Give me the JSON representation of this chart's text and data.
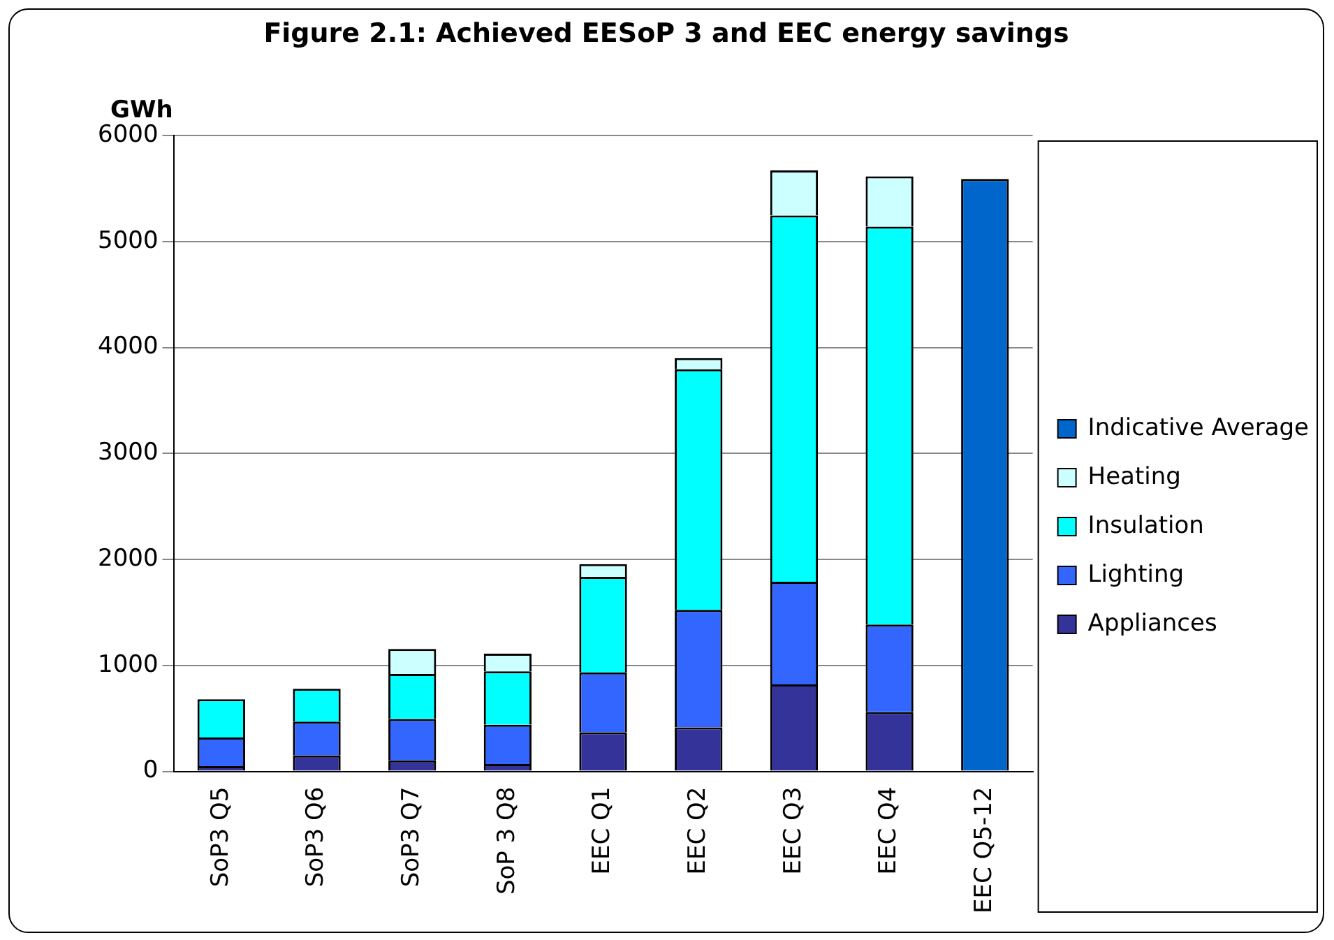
{
  "chart_data": {
    "type": "bar",
    "title": "Figure 2.1: Achieved EESoP 3 and EEC energy savings",
    "ylabel": "GWh",
    "categories": [
      "SoP3 Q5",
      "SoP3 Q6",
      "SoP3 Q7",
      "SoP 3 Q8",
      "EEC Q1",
      "EEC Q2",
      "EEC Q3",
      "EEC Q4",
      "EEC Q5-12"
    ],
    "series": [
      {
        "name": "Appliances",
        "color": "#333399",
        "values": [
          50,
          150,
          105,
          70,
          370,
          415,
          820,
          560,
          null
        ]
      },
      {
        "name": "Lighting",
        "color": "#3366ff",
        "values": [
          270,
          320,
          390,
          370,
          565,
          1110,
          970,
          825,
          null
        ]
      },
      {
        "name": "Insulation",
        "color": "#00ffff",
        "values": [
          360,
          310,
          425,
          505,
          900,
          2270,
          3455,
          3755,
          null
        ]
      },
      {
        "name": "Heating",
        "color": "#ccffff",
        "values": [
          null,
          null,
          235,
          165,
          120,
          105,
          425,
          475,
          null
        ]
      },
      {
        "name": "Indicative Average",
        "color": "#0066cc",
        "values": [
          null,
          null,
          null,
          null,
          null,
          null,
          null,
          null,
          5590
        ]
      }
    ],
    "stacked": true,
    "ylim": [
      0,
      6000
    ],
    "yticks": [
      0,
      1000,
      2000,
      3000,
      4000,
      5000,
      6000
    ],
    "grid": "y",
    "legend": "right"
  }
}
